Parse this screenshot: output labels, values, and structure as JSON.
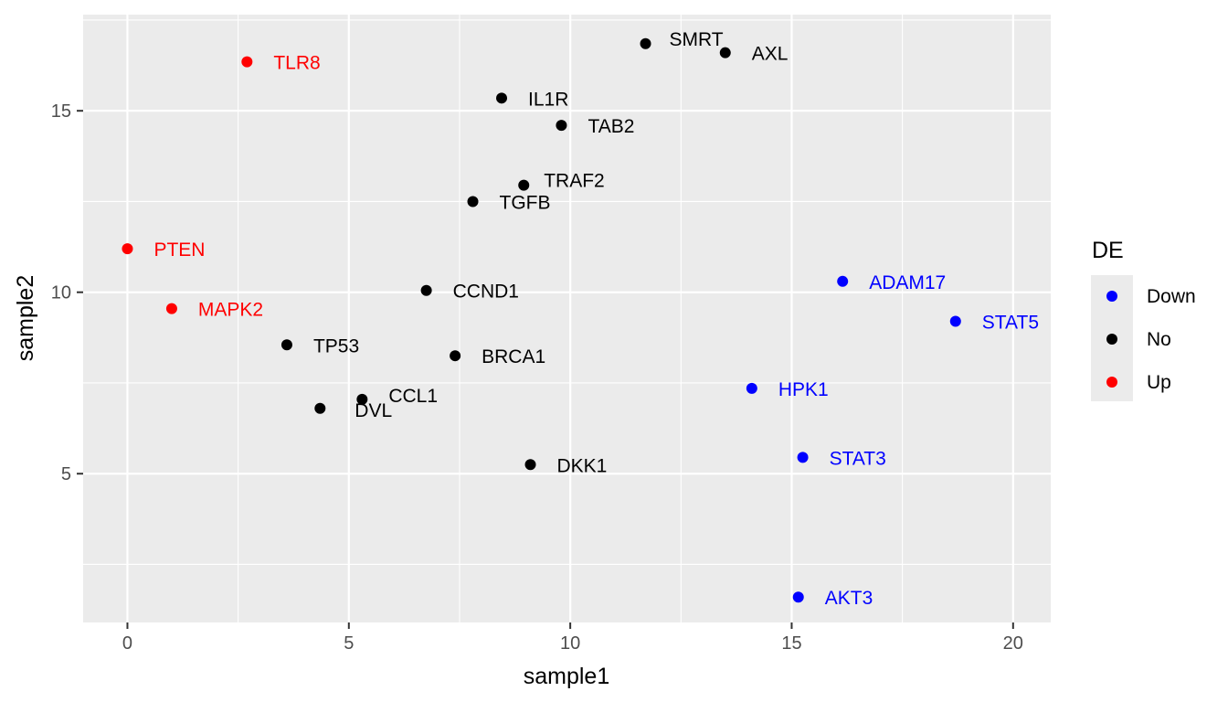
{
  "chart_data": {
    "type": "scatter",
    "xlabel": "sample1",
    "ylabel": "sample2",
    "xlim": [
      -1,
      20.85
    ],
    "ylim": [
      0.9,
      17.65
    ],
    "xticks": [
      0,
      5,
      10,
      15,
      20
    ],
    "yticks": [
      5,
      10,
      15
    ],
    "grid": true,
    "legend": {
      "title": "DE",
      "position": "right",
      "entries": [
        {
          "label": "Down",
          "color": "#0000ff"
        },
        {
          "label": "No",
          "color": "#000000"
        },
        {
          "label": "Up",
          "color": "#ff0000"
        }
      ]
    },
    "points": [
      {
        "label": "TLR8",
        "x": 2.7,
        "y": 16.35,
        "group": "Up"
      },
      {
        "label": "PTEN",
        "x": 0.0,
        "y": 11.2,
        "group": "Up"
      },
      {
        "label": "MAPK2",
        "x": 1.0,
        "y": 9.55,
        "group": "Up"
      },
      {
        "label": "SMRT",
        "x": 11.7,
        "y": 16.85,
        "group": "No"
      },
      {
        "label": "AXL",
        "x": 13.5,
        "y": 16.6,
        "group": "No"
      },
      {
        "label": "IL1R",
        "x": 8.45,
        "y": 15.35,
        "group": "No"
      },
      {
        "label": "TAB2",
        "x": 9.8,
        "y": 14.6,
        "group": "No"
      },
      {
        "label": "TRAF2",
        "x": 8.95,
        "y": 12.95,
        "group": "No"
      },
      {
        "label": "TGFB",
        "x": 7.8,
        "y": 12.5,
        "group": "No"
      },
      {
        "label": "CCND1",
        "x": 6.75,
        "y": 10.05,
        "group": "No"
      },
      {
        "label": "TP53",
        "x": 3.6,
        "y": 8.55,
        "group": "No"
      },
      {
        "label": "BRCA1",
        "x": 7.4,
        "y": 8.25,
        "group": "No"
      },
      {
        "label": "CCL1",
        "x": 5.3,
        "y": 7.05,
        "group": "No"
      },
      {
        "label": "DVL",
        "x": 4.35,
        "y": 6.8,
        "group": "No"
      },
      {
        "label": "DKK1",
        "x": 9.1,
        "y": 5.25,
        "group": "No"
      },
      {
        "label": "ADAM17",
        "x": 16.15,
        "y": 10.3,
        "group": "Down"
      },
      {
        "label": "STAT5",
        "x": 18.7,
        "y": 9.2,
        "group": "Down"
      },
      {
        "label": "HPK1",
        "x": 14.1,
        "y": 7.35,
        "group": "Down"
      },
      {
        "label": "STAT3",
        "x": 15.25,
        "y": 5.45,
        "group": "Down"
      },
      {
        "label": "AKT3",
        "x": 15.15,
        "y": 1.6,
        "group": "Down"
      }
    ]
  }
}
